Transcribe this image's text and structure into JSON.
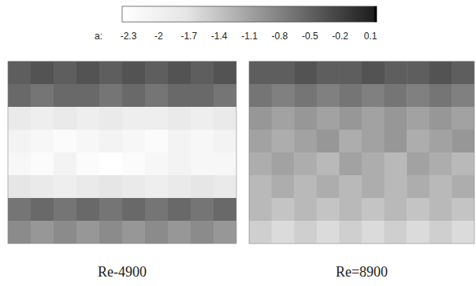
{
  "chart_data": {
    "type": "heatmap",
    "colorbar": {
      "label": "a:",
      "range": [
        -2.3,
        0.1
      ],
      "ticks": [
        -2.3,
        -2,
        -1.7,
        -1.4,
        -1.1,
        -0.8,
        -0.5,
        -0.2,
        0.1
      ]
    },
    "tick_labels": false,
    "panels": [
      {
        "title": "Re-4900",
        "cells": [
          [
            -0.5,
            -0.4,
            -0.5,
            -0.4,
            -0.5,
            -0.4,
            -0.5,
            -0.4,
            -0.5,
            -0.4
          ],
          [
            -0.6,
            -0.7,
            -0.6,
            -0.6,
            -0.7,
            -0.6,
            -0.7,
            -0.6,
            -0.6,
            -0.7
          ],
          [
            -1.8,
            -1.9,
            -1.8,
            -1.9,
            -1.8,
            -1.9,
            -1.9,
            -1.8,
            -1.9,
            -1.8
          ],
          [
            -2.0,
            -2.1,
            -2.2,
            -2.1,
            -2.0,
            -2.1,
            -2.2,
            -2.0,
            -2.1,
            -2.0
          ],
          [
            -2.1,
            -2.2,
            -2.0,
            -2.2,
            -2.3,
            -2.2,
            -2.1,
            -2.0,
            -2.1,
            -2.1
          ],
          [
            -1.7,
            -1.8,
            -1.9,
            -1.8,
            -1.7,
            -1.8,
            -1.9,
            -1.8,
            -1.7,
            -1.8
          ],
          [
            -0.7,
            -0.6,
            -0.7,
            -0.6,
            -0.7,
            -0.6,
            -0.7,
            -0.6,
            -0.7,
            -0.6
          ],
          [
            -0.9,
            -1.0,
            -0.9,
            -1.0,
            -0.9,
            -1.0,
            -0.9,
            -1.0,
            -0.9,
            -1.0
          ]
        ]
      },
      {
        "title": "Re=8900",
        "cells": [
          [
            -0.5,
            -0.5,
            -0.4,
            -0.5,
            -0.5,
            -0.4,
            -0.5,
            -0.5,
            -0.4,
            -0.5
          ],
          [
            -0.7,
            -0.8,
            -0.7,
            -0.8,
            -0.7,
            -0.8,
            -0.7,
            -0.8,
            -0.7,
            -0.8
          ],
          [
            -1.0,
            -1.1,
            -1.0,
            -1.1,
            -1.0,
            -1.1,
            -1.0,
            -1.1,
            -1.0,
            -1.1
          ],
          [
            -1.1,
            -1.2,
            -1.1,
            -1.0,
            -1.2,
            -1.1,
            -1.0,
            -1.2,
            -1.1,
            -1.0
          ],
          [
            -1.2,
            -1.1,
            -1.2,
            -1.3,
            -1.1,
            -1.2,
            -1.3,
            -1.1,
            -1.2,
            -1.3
          ],
          [
            -1.3,
            -1.2,
            -1.3,
            -1.2,
            -1.3,
            -1.2,
            -1.3,
            -1.2,
            -1.3,
            -1.2
          ],
          [
            -1.3,
            -1.4,
            -1.3,
            -1.4,
            -1.3,
            -1.4,
            -1.3,
            -1.4,
            -1.3,
            -1.4
          ],
          [
            -1.5,
            -1.6,
            -1.5,
            -1.6,
            -1.5,
            -1.6,
            -1.5,
            -1.6,
            -1.5,
            -1.6
          ]
        ]
      }
    ]
  }
}
